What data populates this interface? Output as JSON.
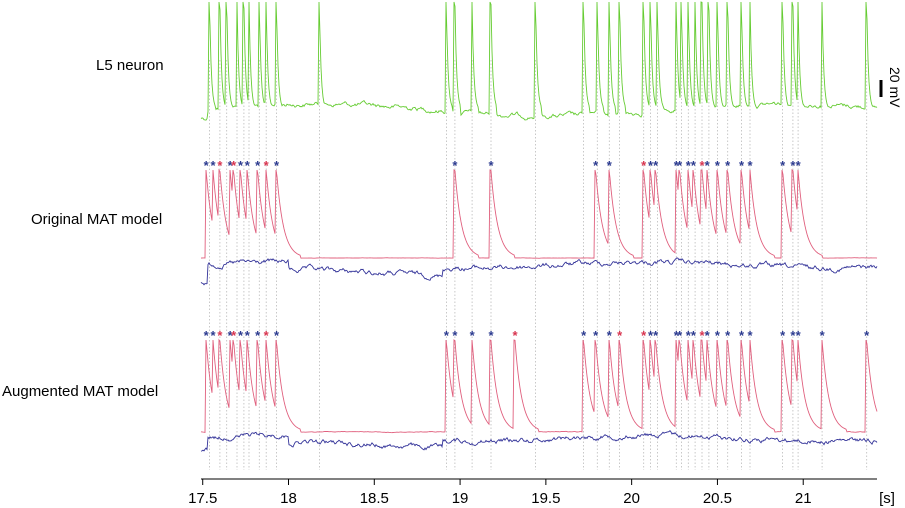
{
  "rows": [
    {
      "label": "L5 neuron"
    },
    {
      "label": "Original MAT model"
    },
    {
      "label": "Augmented MAT model"
    }
  ],
  "scale_bar": {
    "label": "20 mV"
  },
  "colors": {
    "neuron": "#66cc33",
    "model_blue": "#333399",
    "model_pink": "#e0607e",
    "star_blue": "#2b3a8f",
    "star_red": "#d8344f",
    "guide": "#bbbbbb",
    "axis": "#000000"
  },
  "chart_data": {
    "type": "line",
    "xlabel": "[s]",
    "xlim": [
      17.49,
      21.43
    ],
    "xticks": [
      17.5,
      18,
      18.5,
      19,
      19.5,
      20,
      20.5,
      21
    ],
    "xtick_labels": [
      "17.5",
      "18",
      "18.5",
      "19",
      "19.5",
      "20",
      "20.5",
      "21"
    ],
    "series": [
      {
        "spikes": [
          17.54,
          17.6,
          17.64,
          17.7,
          17.74,
          17.77,
          17.83,
          17.87,
          17.93,
          18.18,
          18.92,
          18.97,
          19.07,
          19.18,
          19.44,
          19.72,
          19.8,
          19.87,
          19.93,
          20.07,
          20.11,
          20.15,
          20.26,
          20.29,
          20.33,
          20.37,
          20.41,
          20.45,
          20.5,
          20.56,
          20.64,
          20.69,
          20.88,
          20.94,
          20.97,
          21.11,
          21.37
        ]
      },
      {
        "spikes_blue": [
          17.52,
          17.56,
          17.66,
          17.72,
          17.76,
          17.82,
          17.93,
          18.97,
          19.18,
          19.79,
          19.87,
          20.11,
          20.14,
          20.26,
          20.28,
          20.33,
          20.36,
          20.44,
          20.5,
          20.56,
          20.64,
          20.69,
          20.88,
          20.94,
          20.97
        ],
        "spikes_red": [
          17.6,
          17.68,
          17.87,
          20.07,
          20.41
        ]
      },
      {
        "spikes_blue": [
          17.52,
          17.56,
          17.66,
          17.72,
          17.76,
          17.82,
          17.93,
          18.92,
          18.97,
          19.07,
          19.18,
          19.72,
          19.79,
          19.87,
          20.11,
          20.14,
          20.26,
          20.28,
          20.33,
          20.36,
          20.44,
          20.5,
          20.56,
          20.64,
          20.69,
          20.88,
          20.94,
          20.97,
          21.11,
          21.37
        ],
        "spikes_red": [
          17.6,
          17.68,
          17.87,
          19.32,
          19.93,
          20.07,
          20.41
        ]
      }
    ]
  }
}
